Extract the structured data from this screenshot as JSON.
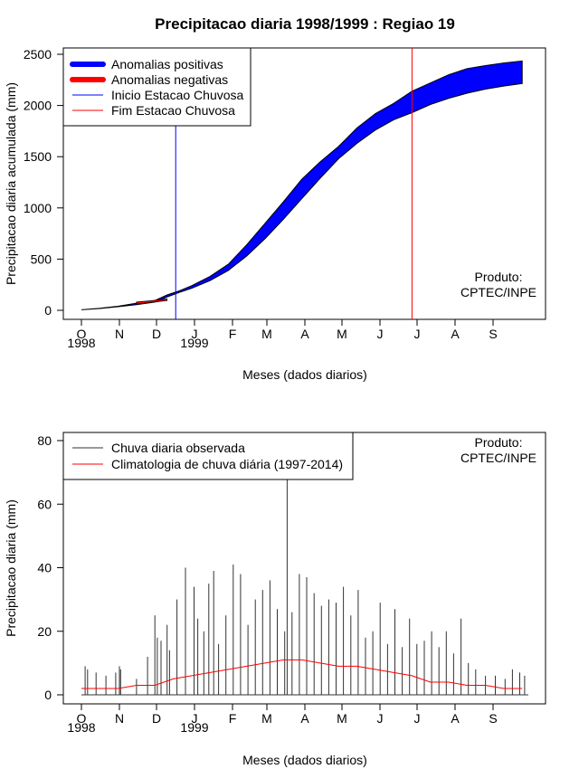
{
  "title": "Precipitacao diaria 1998/1999 : Regiao 19",
  "colors": {
    "positive": "#0000ff",
    "negative": "#ff0000",
    "onset": "#0000ff",
    "end": "#ff0000",
    "observed": "#333333",
    "climatology": "#ff0000",
    "axis": "#000000"
  },
  "chart_data": [
    {
      "type": "area",
      "title": "Precipitacao diaria 1998/1999 : Regiao 19",
      "xlabel": "Meses (dados diarios)",
      "ylabel": "Precipitacao diaria acumulada (mm)",
      "ylim": [
        0,
        2500
      ],
      "yticks": [
        0,
        500,
        1000,
        1500,
        2000,
        2500
      ],
      "month_ticks": [
        "O",
        "N",
        "D",
        "J",
        "F",
        "M",
        "A",
        "M",
        "J",
        "J",
        "A",
        "S"
      ],
      "year_labels": [
        "1998",
        "1999"
      ],
      "legend": [
        "Anomalias positivas",
        "Anomalias negativas",
        "Inicio Estacao Chuvosa",
        "Fim Estacao Chuvosa"
      ],
      "legend_position": "top-left",
      "annotation": [
        "Produto:",
        "CPTEC/INPE"
      ],
      "onset_day": 77,
      "end_day": 270,
      "days": [
        0,
        15,
        30,
        45,
        60,
        70,
        80,
        90,
        105,
        120,
        135,
        150,
        165,
        180,
        195,
        210,
        225,
        240,
        255,
        270,
        285,
        300,
        315,
        330,
        345,
        360
      ],
      "observed_cum": [
        5,
        20,
        40,
        70,
        95,
        150,
        190,
        240,
        330,
        450,
        640,
        850,
        1060,
        1280,
        1450,
        1600,
        1780,
        1920,
        2020,
        2140,
        2220,
        2300,
        2360,
        2390,
        2415,
        2435
      ],
      "climatology_cum": [
        5,
        18,
        35,
        55,
        80,
        130,
        175,
        215,
        290,
        390,
        530,
        700,
        890,
        1090,
        1290,
        1480,
        1630,
        1760,
        1860,
        1930,
        2010,
        2070,
        2120,
        2160,
        2190,
        2215
      ]
    },
    {
      "type": "line",
      "xlabel": "Meses (dados diarios)",
      "ylabel": "Precipitacao diaria (mm)",
      "ylim": [
        0,
        80
      ],
      "yticks": [
        0,
        20,
        40,
        60,
        80
      ],
      "month_ticks": [
        "O",
        "N",
        "D",
        "J",
        "F",
        "M",
        "A",
        "M",
        "J",
        "J",
        "A",
        "S"
      ],
      "year_labels": [
        "1998",
        "1999"
      ],
      "legend": [
        "Chuva diaria observada",
        "Climatologia de chuva diária (1997-2014)"
      ],
      "legend_position": "top-left",
      "annotation": [
        "Produto:",
        "CPTEC/INPE"
      ],
      "series": [
        {
          "name": "Chuva diaria observada",
          "days": [
            3,
            5,
            12,
            20,
            28,
            31,
            32,
            45,
            54,
            60,
            62,
            65,
            70,
            72,
            78,
            85,
            92,
            95,
            100,
            104,
            108,
            112,
            118,
            124,
            130,
            136,
            142,
            148,
            154,
            160,
            166,
            168,
            172,
            178,
            184,
            190,
            196,
            202,
            208,
            214,
            220,
            226,
            232,
            238,
            244,
            250,
            256,
            262,
            268,
            274,
            280,
            286,
            292,
            298,
            304,
            310,
            316,
            322,
            330,
            338,
            346,
            352,
            358,
            362
          ],
          "values": [
            9,
            8,
            7,
            6,
            7,
            9,
            8,
            5,
            12,
            25,
            18,
            17,
            22,
            14,
            30,
            40,
            34,
            24,
            20,
            35,
            39,
            16,
            25,
            41,
            38,
            22,
            30,
            33,
            36,
            27,
            20,
            68,
            26,
            38,
            37,
            32,
            28,
            30,
            29,
            34,
            25,
            33,
            18,
            20,
            29,
            16,
            27,
            15,
            24,
            16,
            17,
            20,
            15,
            20,
            13,
            24,
            10,
            8,
            6,
            6,
            5,
            8,
            7,
            6
          ]
        },
        {
          "name": "Climatologia de chuva diária (1997-2014)",
          "days": [
            0,
            15,
            30,
            45,
            60,
            75,
            90,
            105,
            120,
            135,
            150,
            165,
            180,
            195,
            210,
            225,
            240,
            255,
            270,
            285,
            300,
            315,
            330,
            345,
            360
          ],
          "values": [
            2,
            2,
            2,
            3,
            3,
            5,
            6,
            7,
            8,
            9,
            10,
            11,
            11,
            10,
            9,
            9,
            8,
            7,
            6,
            4,
            4,
            3,
            3,
            2,
            2
          ]
        }
      ]
    }
  ]
}
